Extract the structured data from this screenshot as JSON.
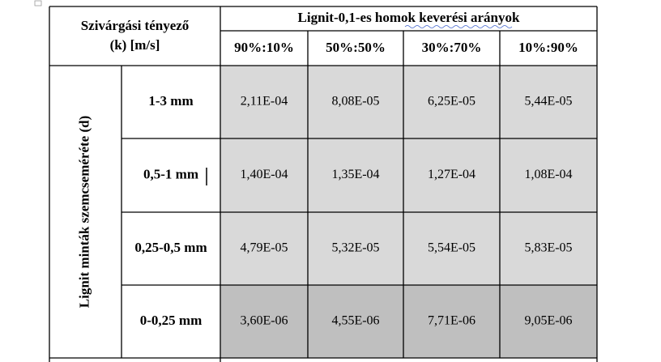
{
  "table": {
    "corner": [
      "Szivárgási tényező",
      "(k) [m/s]"
    ],
    "group_header": "Lignit-0,1-es homok keverési arányok",
    "columns": [
      "90%:10%",
      "50%:50%",
      "30%:70%",
      "10%:90%"
    ],
    "row_group": "Lignit minták szemcseméréte (d)",
    "rows": [
      {
        "label": "1-3 mm",
        "values": [
          "2,11E-04",
          "8,08E-05",
          "6,25E-05",
          "5,44E-05"
        ]
      },
      {
        "label": "0,5-1 mm",
        "values": [
          "1,40E-04",
          "1,35E-04",
          "1,27E-04",
          "1,08E-04"
        ]
      },
      {
        "label": "0,25-0,5 mm",
        "values": [
          "4,79E-05",
          "5,32E-05",
          "5,54E-05",
          "5,83E-05"
        ]
      },
      {
        "label": "0-0,25 mm",
        "values": [
          "3,60E-06",
          "4,55E-06",
          "7,71E-06",
          "9,05E-06"
        ]
      }
    ]
  }
}
